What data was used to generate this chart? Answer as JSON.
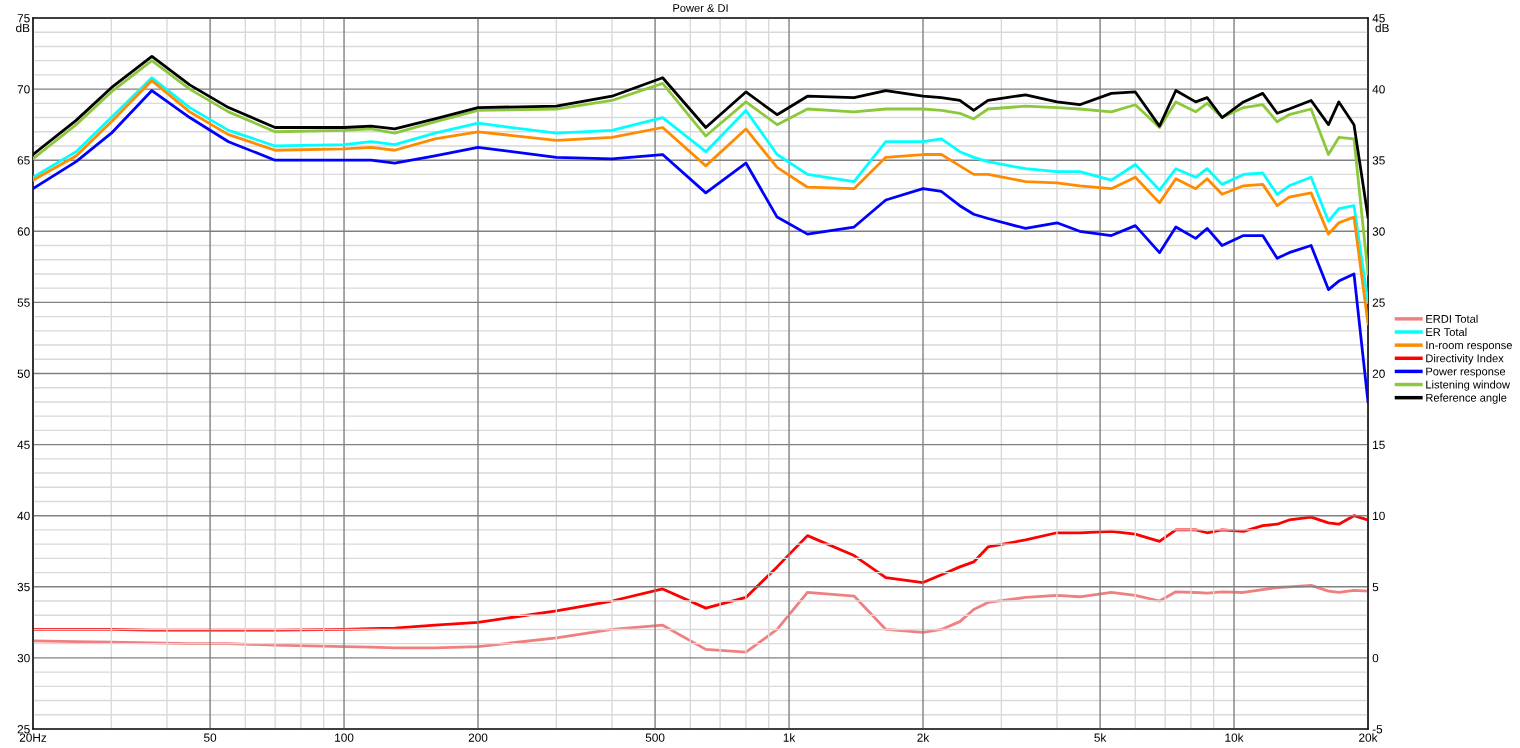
{
  "chart_data": {
    "type": "line",
    "title": "Power & DI",
    "ylabel": "dB",
    "y2label": "dB",
    "log": "x",
    "grid": true,
    "legend": "right",
    "marker": "none",
    "line_style": "solid",
    "x": [
      20,
      25,
      30,
      37,
      45,
      55,
      70,
      100,
      115,
      130,
      160,
      200,
      300,
      400,
      520,
      650,
      800,
      940,
      1100,
      1400,
      1650,
      2000,
      2200,
      2420,
      2600,
      2800,
      3400,
      4000,
      4500,
      5300,
      6000,
      6800,
      7400,
      8200,
      8700,
      9400,
      10500,
      11600,
      12500,
      13300,
      14900,
      16300,
      17200,
      18600,
      20000
    ],
    "xlim": [
      20,
      20000
    ],
    "xticks": [
      {
        "value": 20,
        "label": "20Hz"
      },
      {
        "value": 30,
        "label": null
      },
      {
        "value": 40,
        "label": null
      },
      50,
      {
        "value": 60,
        "label": null
      },
      {
        "value": 70,
        "label": null
      },
      {
        "value": 80,
        "label": null
      },
      {
        "value": 90,
        "label": null
      },
      100,
      200,
      {
        "value": 300,
        "label": null
      },
      {
        "value": 400,
        "label": null
      },
      500,
      {
        "value": 600,
        "label": null
      },
      {
        "value": 700,
        "label": null
      },
      {
        "value": 800,
        "label": null
      },
      {
        "value": 900,
        "label": null
      },
      {
        "value": 1000,
        "label": "1k"
      },
      {
        "value": 2000,
        "label": "2k"
      },
      {
        "value": 3000,
        "label": null
      },
      {
        "value": 4000,
        "label": null
      },
      {
        "value": 5000,
        "label": "5k"
      },
      {
        "value": 6000,
        "label": null
      },
      {
        "value": 7000,
        "label": null
      },
      {
        "value": 8000,
        "label": null
      },
      {
        "value": 9000,
        "label": null
      },
      {
        "value": 10000,
        "label": "10k"
      },
      {
        "value": 20000,
        "label": "20k"
      }
    ],
    "ylim": [
      25,
      75
    ],
    "yticks": [
      25,
      {
        "value": 26,
        "label": null
      },
      {
        "value": 27,
        "label": null
      },
      {
        "value": 28,
        "label": null
      },
      {
        "value": 29,
        "label": null
      },
      30,
      {
        "value": 31,
        "label": null
      },
      {
        "value": 32,
        "label": null
      },
      {
        "value": 33,
        "label": null
      },
      {
        "value": 34,
        "label": null
      },
      35,
      {
        "value": 36,
        "label": null
      },
      {
        "value": 37,
        "label": null
      },
      {
        "value": 38,
        "label": null
      },
      {
        "value": 39,
        "label": null
      },
      40,
      {
        "value": 41,
        "label": null
      },
      {
        "value": 42,
        "label": null
      },
      {
        "value": 43,
        "label": null
      },
      {
        "value": 44,
        "label": null
      },
      45,
      {
        "value": 46,
        "label": null
      },
      {
        "value": 47,
        "label": null
      },
      {
        "value": 48,
        "label": null
      },
      {
        "value": 49,
        "label": null
      },
      50,
      {
        "value": 51,
        "label": null
      },
      {
        "value": 52,
        "label": null
      },
      {
        "value": 53,
        "label": null
      },
      {
        "value": 54,
        "label": null
      },
      55,
      {
        "value": 56,
        "label": null
      },
      {
        "value": 57,
        "label": null
      },
      {
        "value": 58,
        "label": null
      },
      {
        "value": 59,
        "label": null
      },
      60,
      {
        "value": 61,
        "label": null
      },
      {
        "value": 62,
        "label": null
      },
      {
        "value": 63,
        "label": null
      },
      {
        "value": 64,
        "label": null
      },
      65,
      {
        "value": 66,
        "label": null
      },
      {
        "value": 67,
        "label": null
      },
      {
        "value": 68,
        "label": null
      },
      {
        "value": 69,
        "label": null
      },
      70,
      {
        "value": 71,
        "label": null
      },
      {
        "value": 72,
        "label": null
      },
      {
        "value": 73,
        "label": null
      },
      {
        "value": 74,
        "label": null
      },
      75
    ],
    "y2lim": [
      -5,
      45
    ],
    "y2ticks": [
      -5,
      0,
      5,
      10,
      15,
      20,
      25,
      30,
      35,
      40,
      45
    ],
    "series": [
      {
        "name": "ERDI Total",
        "color": "#f08080",
        "axis": "y2",
        "values": [
          1.2,
          1.15,
          1.1,
          1.05,
          1.0,
          1.0,
          0.9,
          0.8,
          0.75,
          0.7,
          0.7,
          0.8,
          1.4,
          2.0,
          2.3,
          0.6,
          0.4,
          2.0,
          4.6,
          4.35,
          2.0,
          1.8,
          2.0,
          2.55,
          3.4,
          3.9,
          4.25,
          4.4,
          4.3,
          4.6,
          4.4,
          4.0,
          4.65,
          4.6,
          4.55,
          4.65,
          4.6,
          4.8,
          4.95,
          5.0,
          5.1,
          4.7,
          4.6,
          4.75,
          4.7
        ]
      },
      {
        "name": "ER Total",
        "color": "#00ffff",
        "values": [
          63.8,
          65.6,
          68.0,
          70.8,
          68.7,
          67.1,
          66.0,
          66.1,
          66.3,
          66.1,
          66.9,
          67.6,
          66.9,
          67.1,
          68.0,
          65.6,
          68.5,
          65.4,
          64.0,
          63.5,
          66.3,
          66.3,
          66.5,
          65.6,
          65.2,
          64.9,
          64.4,
          64.2,
          64.2,
          63.6,
          64.7,
          62.9,
          64.4,
          63.8,
          64.4,
          63.3,
          64.0,
          64.1,
          62.6,
          63.2,
          63.8,
          60.7,
          61.6,
          61.8,
          55
        ]
      },
      {
        "name": "In-room response",
        "color": "#ff8c00",
        "values": [
          63.6,
          65.3,
          67.7,
          70.6,
          68.4,
          66.8,
          65.7,
          65.8,
          65.9,
          65.7,
          66.5,
          67.0,
          66.4,
          66.6,
          67.3,
          64.6,
          67.2,
          64.5,
          63.1,
          63.0,
          65.2,
          65.4,
          65.4,
          64.6,
          64.0,
          64.0,
          63.5,
          63.4,
          63.2,
          63.0,
          63.8,
          62.0,
          63.7,
          63.0,
          63.7,
          62.6,
          63.2,
          63.3,
          61.8,
          62.4,
          62.7,
          59.8,
          60.6,
          61.0,
          53.5
        ]
      },
      {
        "name": "Directivity Index",
        "color": "#ff0000",
        "axis": "y2",
        "values": [
          2.0,
          2.0,
          2.0,
          1.95,
          1.95,
          1.95,
          1.95,
          2.0,
          2.05,
          2.1,
          2.3,
          2.5,
          3.3,
          4.0,
          4.85,
          3.5,
          4.25,
          6.4,
          8.6,
          7.2,
          5.65,
          5.3,
          5.85,
          6.4,
          6.75,
          7.8,
          8.3,
          8.8,
          8.8,
          8.9,
          8.7,
          8.2,
          9.0,
          9.0,
          8.8,
          9.0,
          8.9,
          9.3,
          9.4,
          9.7,
          9.9,
          9.5,
          9.4,
          10.0,
          9.7
        ]
      },
      {
        "name": "Power response",
        "color": "#0000ff",
        "values": [
          63.0,
          64.9,
          66.9,
          69.9,
          68.0,
          66.3,
          65.0,
          65.0,
          65.0,
          64.8,
          65.3,
          65.9,
          65.2,
          65.1,
          65.4,
          62.7,
          64.8,
          61.0,
          59.8,
          60.3,
          62.2,
          63.0,
          62.8,
          61.8,
          61.2,
          60.9,
          60.2,
          60.6,
          60.0,
          59.7,
          60.4,
          58.5,
          60.3,
          59.5,
          60.2,
          59.0,
          59.7,
          59.7,
          58.1,
          58.5,
          59.0,
          55.9,
          56.5,
          57.0,
          48
        ]
      },
      {
        "name": "Listening window",
        "color": "#8cc83c",
        "values": [
          65.1,
          67.5,
          69.8,
          72.0,
          70.0,
          68.4,
          67.0,
          67.1,
          67.2,
          66.9,
          67.7,
          68.5,
          68.6,
          69.2,
          70.4,
          66.7,
          69.1,
          67.5,
          68.6,
          68.4,
          68.6,
          68.6,
          68.5,
          68.3,
          67.9,
          68.6,
          68.8,
          68.7,
          68.6,
          68.4,
          68.9,
          67.3,
          69.1,
          68.4,
          69.0,
          68.0,
          68.7,
          68.9,
          67.7,
          68.2,
          68.6,
          65.4,
          66.6,
          66.5,
          57
        ]
      },
      {
        "name": "Reference angle",
        "color": "#000000",
        "values": [
          65.4,
          67.8,
          70.1,
          72.3,
          70.3,
          68.7,
          67.3,
          67.3,
          67.4,
          67.2,
          67.9,
          68.7,
          68.8,
          69.5,
          70.8,
          67.3,
          69.8,
          68.2,
          69.5,
          69.4,
          69.9,
          69.5,
          69.4,
          69.2,
          68.5,
          69.2,
          69.6,
          69.1,
          68.9,
          69.7,
          69.8,
          67.4,
          69.9,
          69.1,
          69.4,
          68.0,
          69.1,
          69.7,
          68.3,
          68.6,
          69.2,
          67.5,
          69.1,
          67.5,
          61
        ]
      }
    ]
  }
}
